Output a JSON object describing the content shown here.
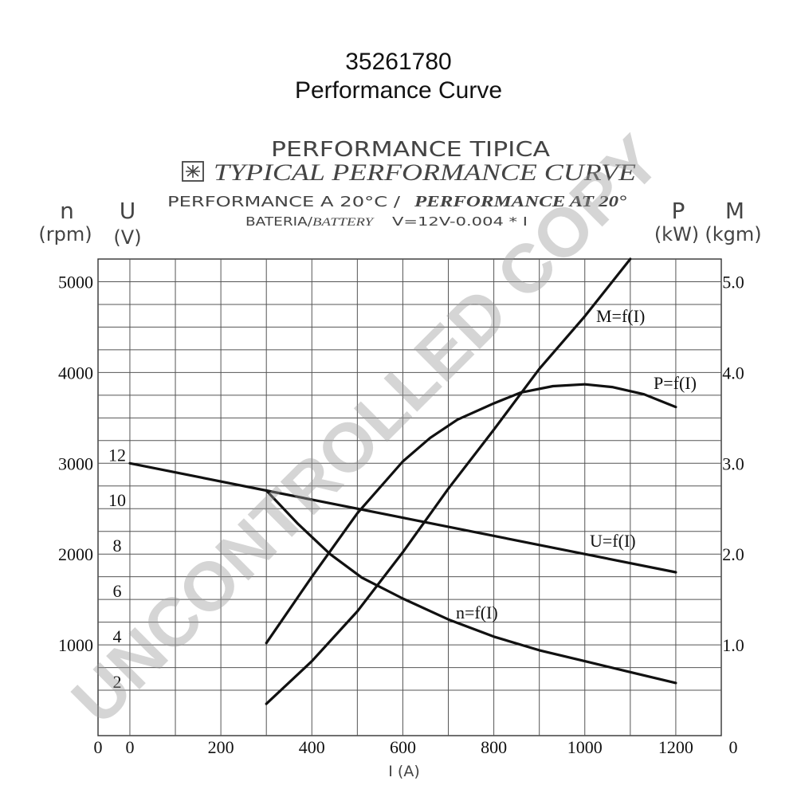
{
  "title": {
    "line1": "35261780",
    "line2": "Performance Curve"
  },
  "header": {
    "line_es": "PERFORMANCE TIPICA",
    "line_en": "TYPICAL PERFORMANCE CURVE",
    "temp_es": "PERFORMANCE A 20°C /",
    "temp_en": "PERFORMANCE AT 20°",
    "battery_es": "BATERIA/",
    "battery_en": "BATTERY",
    "battery_formula": "V=12V-0.004 * I"
  },
  "axes_labels": {
    "n_symbol": "n",
    "n_unit": "(rpm)",
    "u_symbol": "U",
    "u_unit": "(V)",
    "p_symbol": "P",
    "p_unit": "(kW)",
    "m_symbol": "M",
    "m_unit": "(kgm)",
    "x_label": "I (A)"
  },
  "watermark": "UNCONTROLLED COPY",
  "chart_data": {
    "type": "line",
    "x_label": "I (A)",
    "xlim": [
      -70,
      1300
    ],
    "x_ticks": [
      "0",
      "0",
      "200",
      "400",
      "600",
      "800",
      "1000",
      "1200"
    ],
    "left_rpm_ticks": [
      {
        "label": "5000",
        "value": 5000
      },
      {
        "label": "4000",
        "value": 4000
      },
      {
        "label": "3000",
        "value": 3000
      },
      {
        "label": "2000",
        "value": 2000
      },
      {
        "label": "1000",
        "value": 1000
      }
    ],
    "left_volt_ticks": [
      {
        "label": "12",
        "value": 12
      },
      {
        "label": "10",
        "value": 10
      },
      {
        "label": "8",
        "value": 8
      },
      {
        "label": "6",
        "value": 6
      },
      {
        "label": "4",
        "value": 4
      },
      {
        "label": "2",
        "value": 2
      }
    ],
    "right_ticks": [
      {
        "label": "5.0",
        "value": 5.0
      },
      {
        "label": "4.0",
        "value": 4.0
      },
      {
        "label": "3.0",
        "value": 3.0
      },
      {
        "label": "2.0",
        "value": 2.0
      },
      {
        "label": "1.0",
        "value": 1.0
      },
      {
        "label": "0",
        "value": 0
      }
    ],
    "ylim_rpm": [
      0,
      5250
    ],
    "ylim_volt": [
      0,
      21
    ],
    "ylim_right": [
      0,
      5.25
    ],
    "grid": true,
    "series": [
      {
        "name": "U=f(I)",
        "axis": "volt",
        "points": [
          [
            0,
            12.0
          ],
          [
            300,
            10.8
          ],
          [
            600,
            9.6
          ],
          [
            1000,
            8.0
          ],
          [
            1200,
            7.2
          ]
        ]
      },
      {
        "name": "n=f(I)",
        "axis": "rpm",
        "points": [
          [
            300,
            2700
          ],
          [
            370,
            2330
          ],
          [
            440,
            2000
          ],
          [
            510,
            1740
          ],
          [
            600,
            1510
          ],
          [
            700,
            1280
          ],
          [
            800,
            1090
          ],
          [
            900,
            940
          ],
          [
            1000,
            820
          ],
          [
            1100,
            700
          ],
          [
            1200,
            580
          ]
        ]
      },
      {
        "name": "P=f(I)",
        "axis": "right",
        "points": [
          [
            300,
            1.02
          ],
          [
            400,
            1.75
          ],
          [
            500,
            2.45
          ],
          [
            600,
            3.02
          ],
          [
            660,
            3.28
          ],
          [
            720,
            3.48
          ],
          [
            800,
            3.66
          ],
          [
            860,
            3.78
          ],
          [
            930,
            3.85
          ],
          [
            1000,
            3.87
          ],
          [
            1060,
            3.84
          ],
          [
            1130,
            3.76
          ],
          [
            1200,
            3.62
          ]
        ]
      },
      {
        "name": "M=f(I)",
        "axis": "right",
        "points": [
          [
            300,
            0.35
          ],
          [
            400,
            0.82
          ],
          [
            500,
            1.37
          ],
          [
            600,
            2.02
          ],
          [
            700,
            2.72
          ],
          [
            800,
            3.37
          ],
          [
            900,
            4.04
          ],
          [
            1000,
            4.62
          ],
          [
            1100,
            5.25
          ]
        ]
      }
    ]
  }
}
